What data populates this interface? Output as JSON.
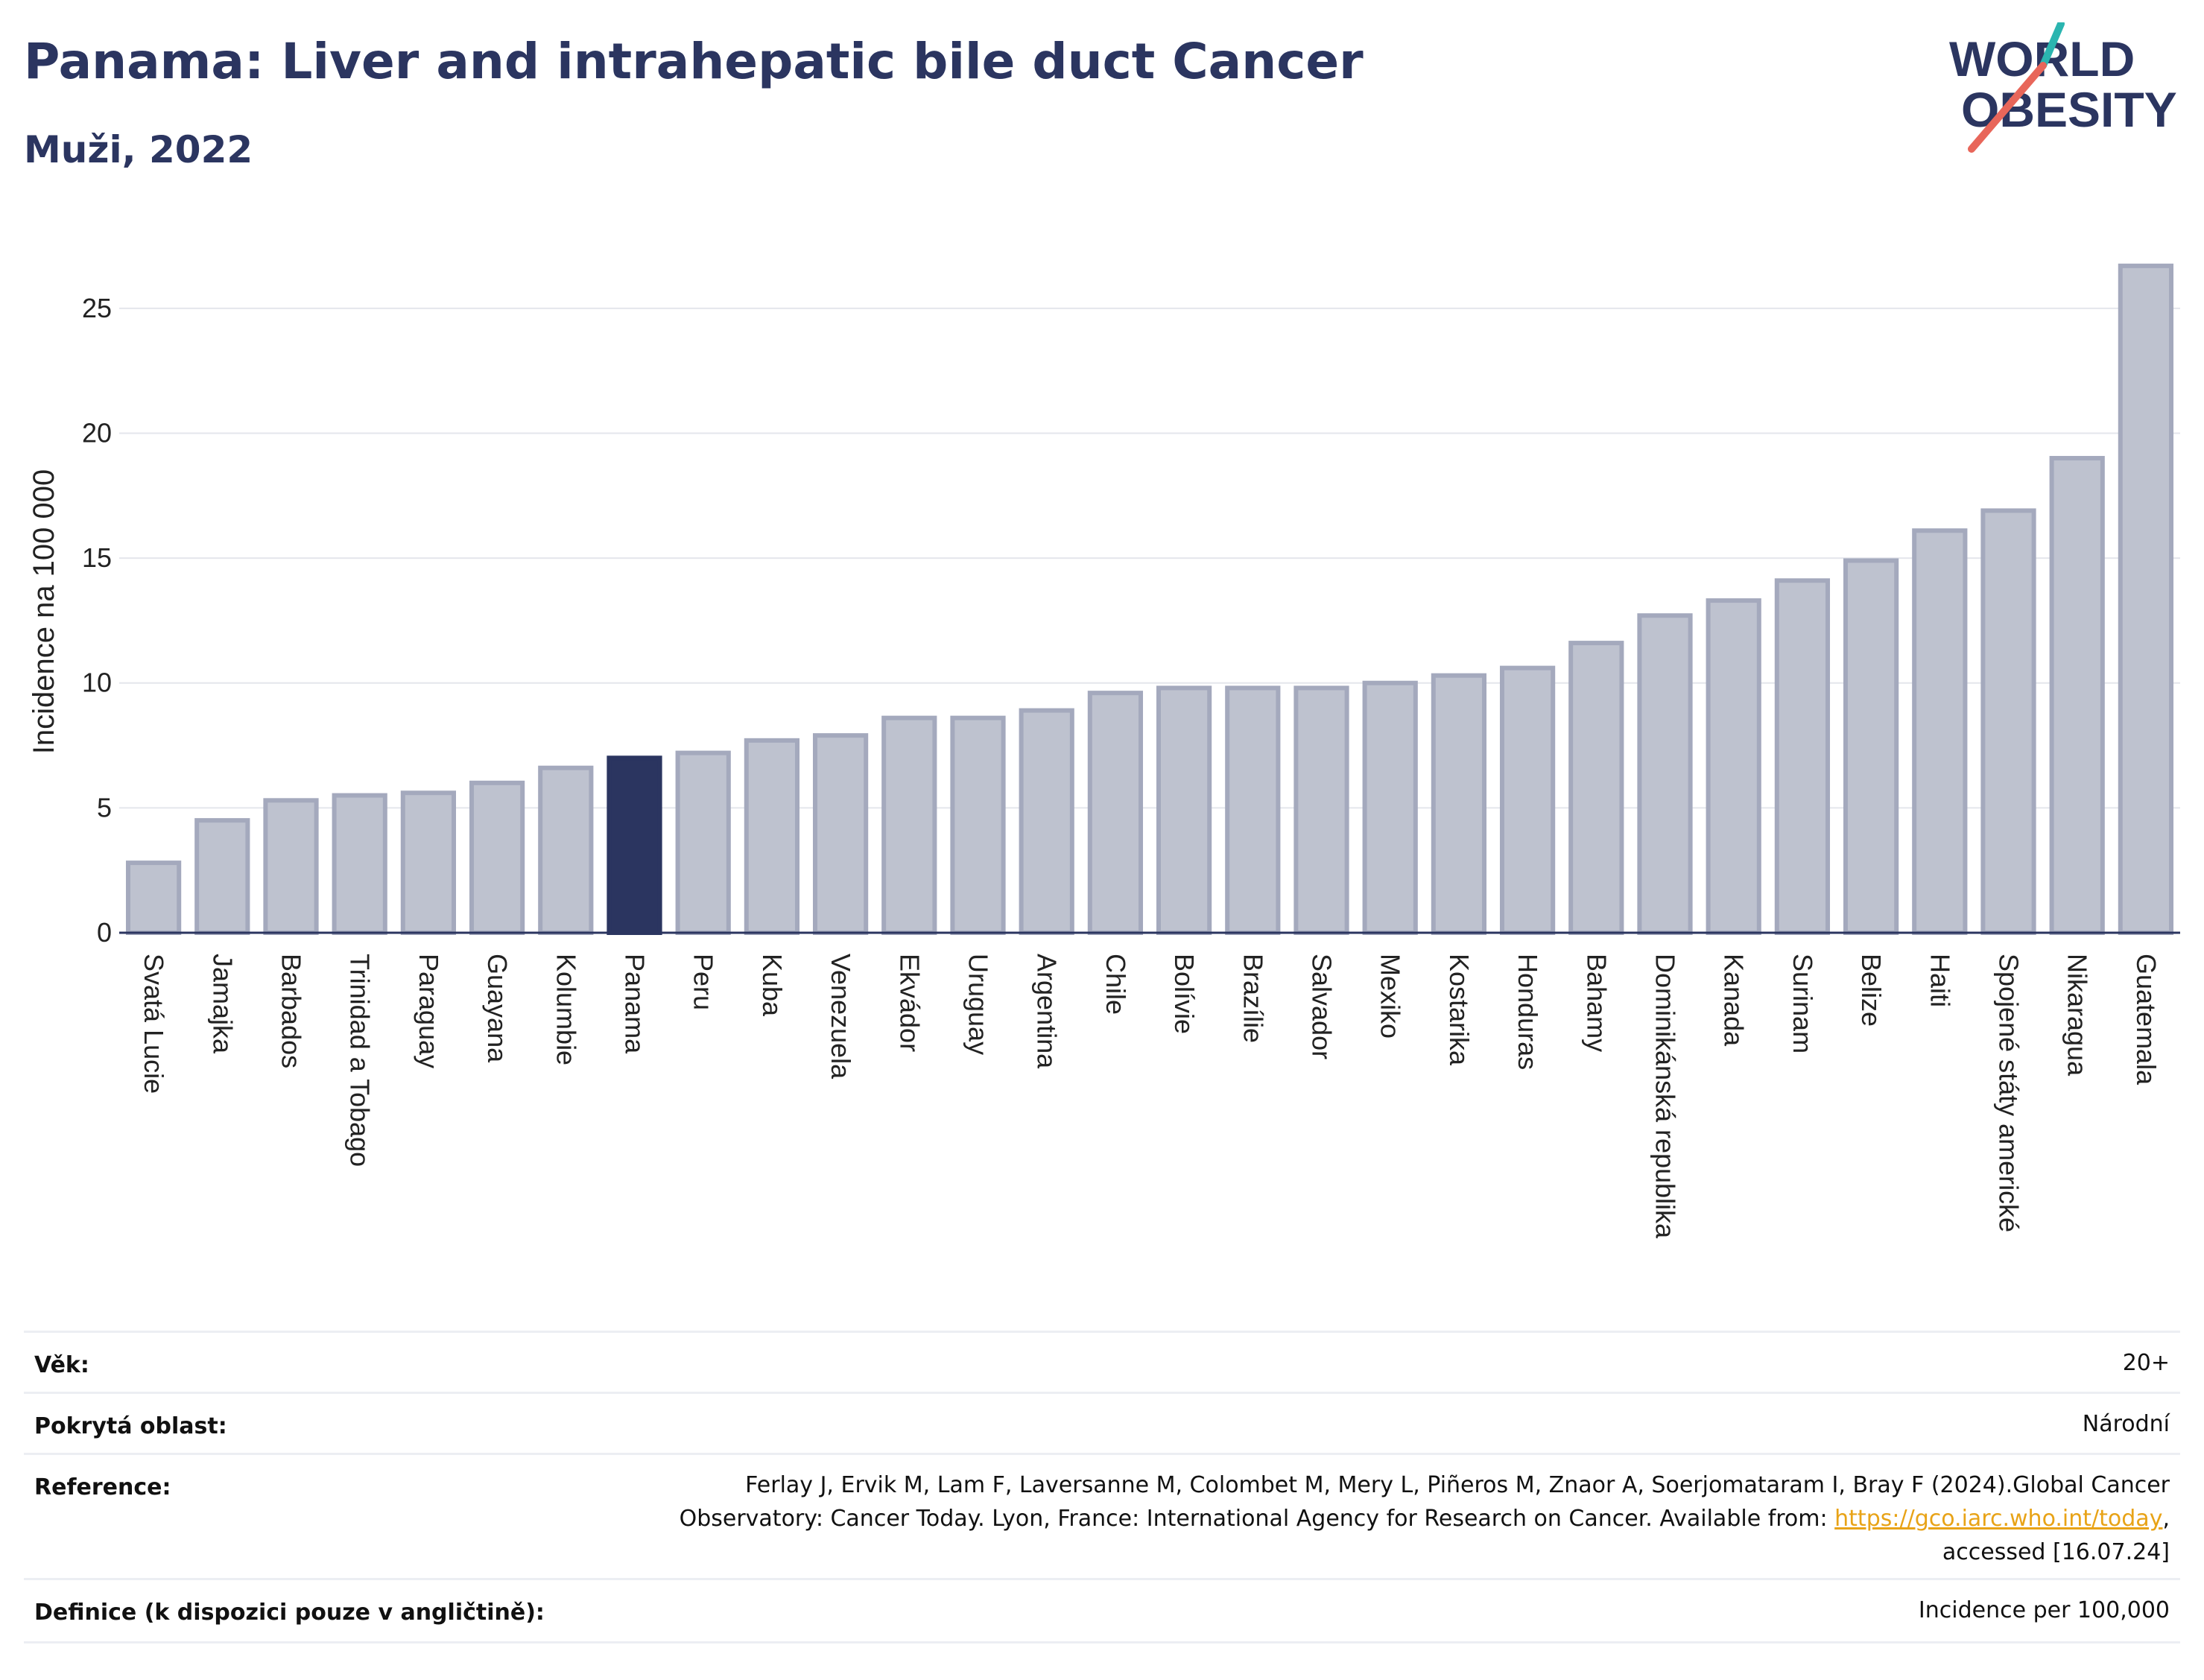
{
  "header": {
    "title": "Panama: Liver and intrahepatic bile duct Cancer",
    "subtitle": "Muži, 2022"
  },
  "logo": {
    "line1": "WORLD",
    "line2": "OBESITY",
    "text_color": "#2b3560",
    "accent_teal": "#2bb5b0",
    "accent_red": "#e8665a"
  },
  "chart_data": {
    "type": "bar",
    "title": "Panama: Liver and intrahepatic bile duct Cancer",
    "subtitle": "Muži, 2022",
    "xlabel": "",
    "ylabel": "Incidence na 100 000",
    "ylim": [
      0,
      27.5
    ],
    "yticks": [
      0,
      5,
      10,
      15,
      20,
      25
    ],
    "grid": true,
    "highlight": "Panama",
    "colors": {
      "bar": "#bec2cf",
      "bar_edge": "#a4a9bd",
      "highlight": "#2b3560"
    },
    "categories": [
      "Svatá Lucie",
      "Jamajka",
      "Barbados",
      "Trinidad a Tobago",
      "Paraguay",
      "Guayana",
      "Kolumbie",
      "Panama",
      "Peru",
      "Kuba",
      "Venezuela",
      "Ekvádor",
      "Uruguay",
      "Argentina",
      "Chile",
      "Bolívie",
      "Brazílie",
      "Salvador",
      "Mexiko",
      "Kostarika",
      "Honduras",
      "Bahamy",
      "Dominikánská republika",
      "Kanada",
      "Surinam",
      "Belize",
      "Haiti",
      "Spojené státy americké",
      "Nikaragua",
      "Guatemala"
    ],
    "values": [
      2.8,
      4.5,
      5.3,
      5.5,
      5.6,
      6.0,
      6.6,
      7.0,
      7.2,
      7.7,
      7.9,
      8.6,
      8.6,
      8.9,
      9.6,
      9.8,
      9.8,
      9.8,
      10.0,
      10.3,
      10.6,
      11.6,
      12.7,
      13.3,
      14.1,
      14.9,
      16.1,
      16.9,
      19.0,
      26.7
    ]
  },
  "meta": {
    "rows": [
      {
        "label": "Věk:",
        "value": "20+"
      },
      {
        "label": "Pokrytá oblast:",
        "value": "Národní"
      },
      {
        "label": "Reference:",
        "value_line1": "Ferlay J, Ervik M, Lam F, Laversanne M, Colombet M, Mery L, Piñeros M, Znaor A, Soerjomataram I, Bray F (2024).Global Cancer",
        "value_line2_pre": "Observatory: Cancer Today. Lyon, France: International Agency for Research on Cancer. Available from: ",
        "link": "https://gco.iarc.who.int/today",
        "value_line2_post": ",",
        "value_line3": "accessed [16.07.24]"
      },
      {
        "label": "Definice (k dispozici pouze v angličtině):",
        "value": "Incidence per 100,000"
      }
    ]
  }
}
